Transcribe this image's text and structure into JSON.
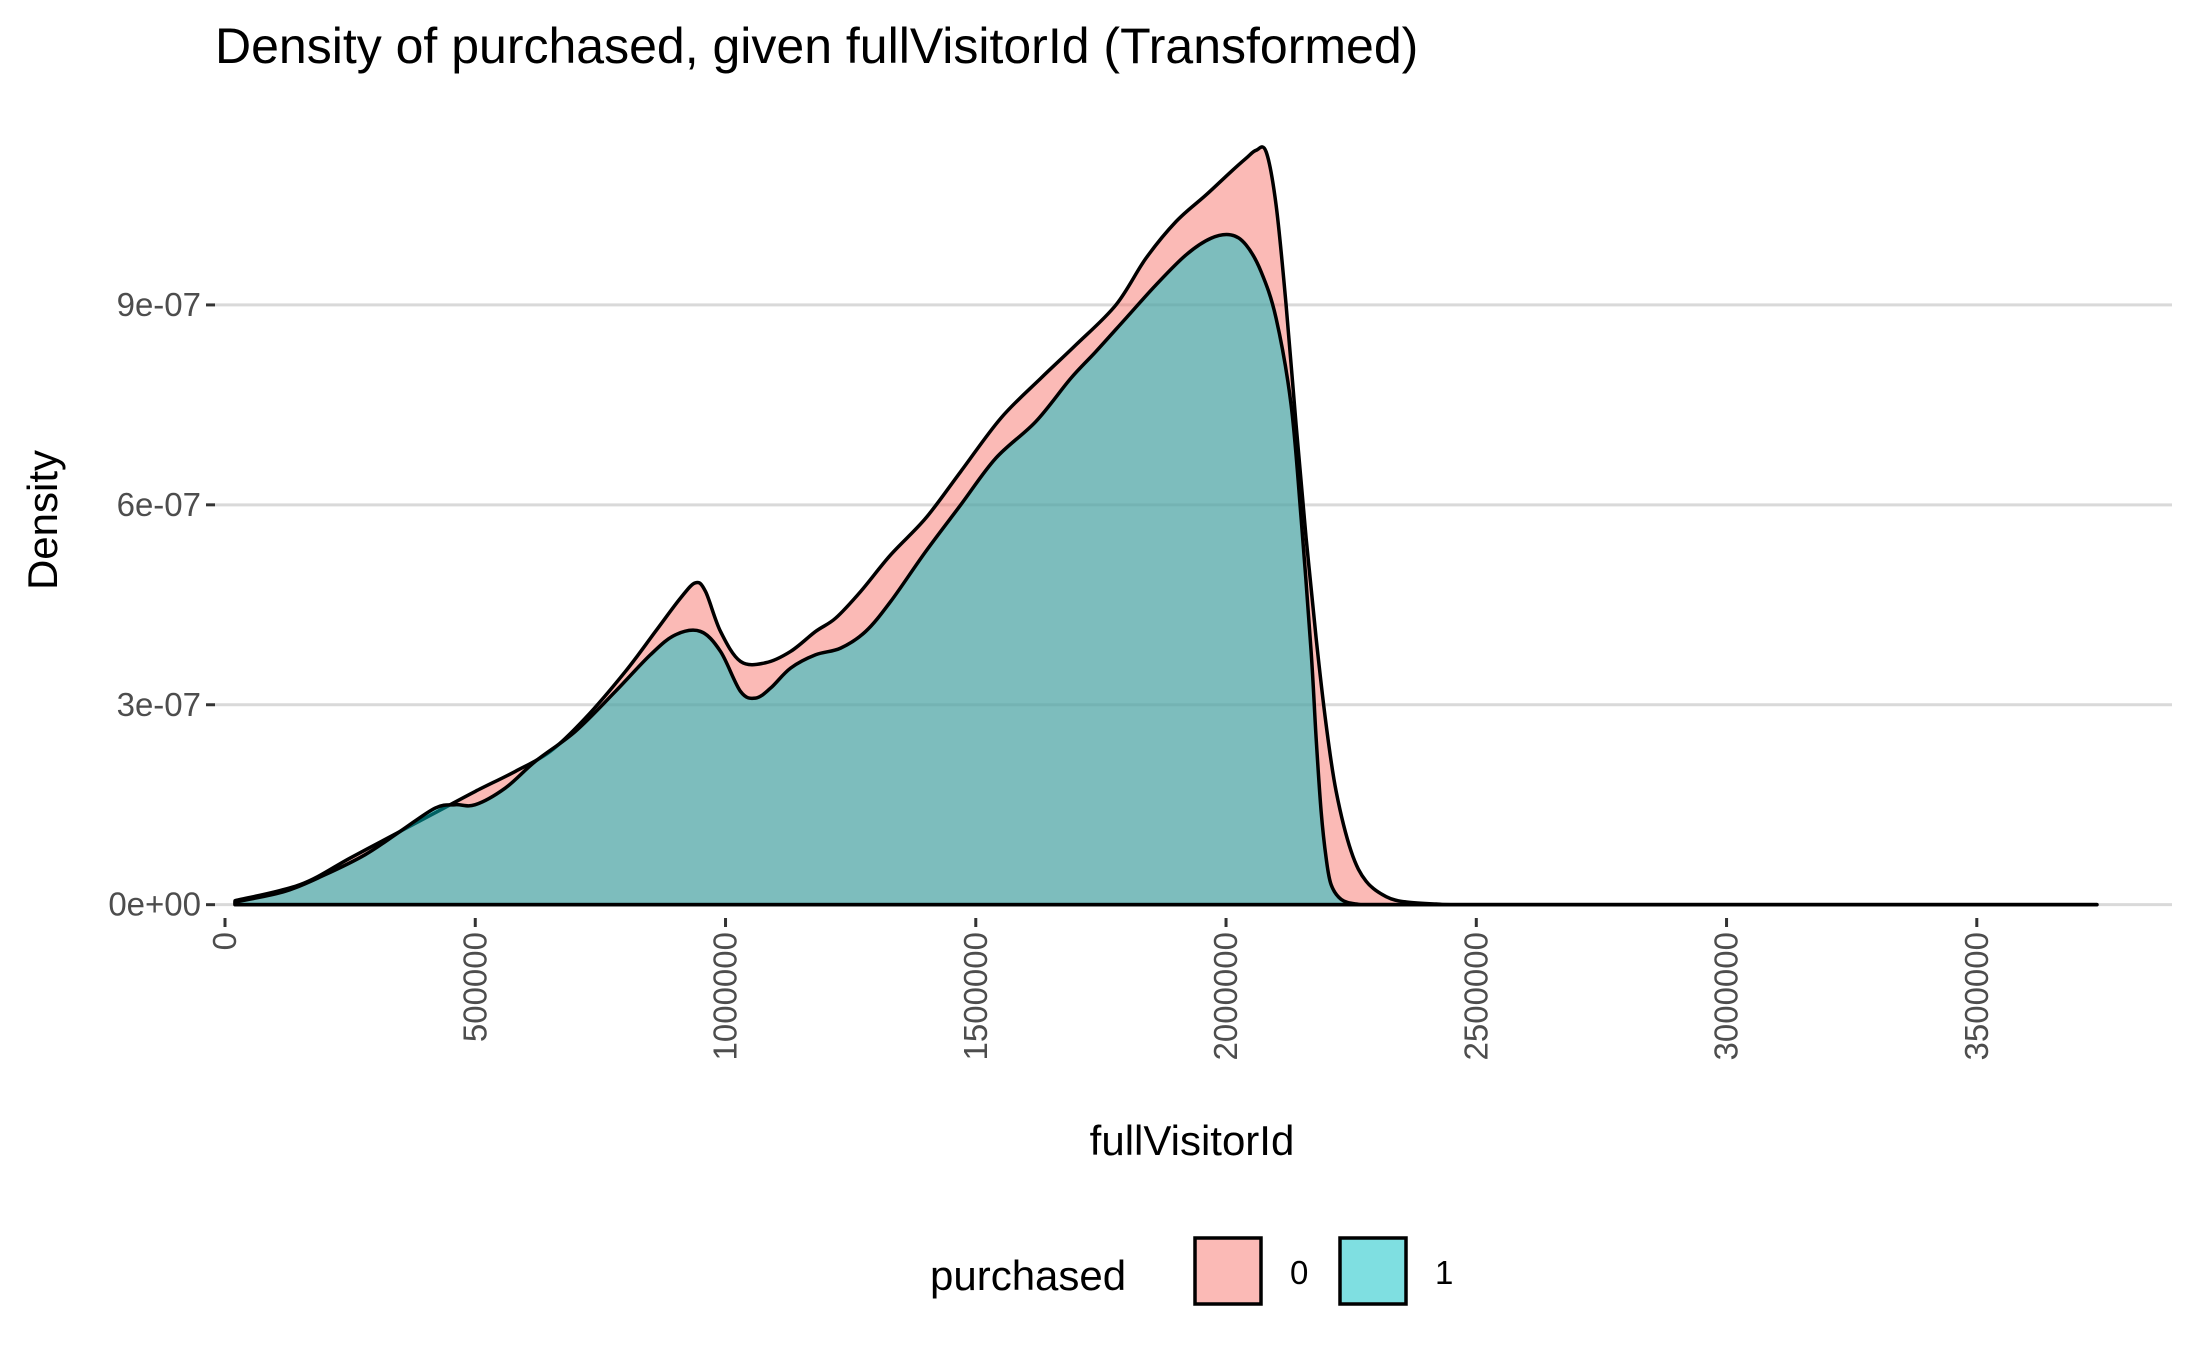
{
  "chart_data": {
    "type": "area",
    "title": "Density of purchased, given fullVisitorId (Transformed)",
    "xlabel": "fullVisitorId",
    "ylabel": "Density",
    "xlim": [
      -20000,
      3890000
    ],
    "ylim": [
      -2e-08,
      1.17e-06
    ],
    "x_ticks": [
      0,
      500000,
      1000000,
      1500000,
      2000000,
      2500000,
      3000000,
      3500000
    ],
    "x_tick_labels": [
      "0",
      "500000",
      "1000000",
      "1500000",
      "2000000",
      "2500000",
      "3000000",
      "3500000"
    ],
    "y_ticks": [
      0,
      3e-07,
      6e-07,
      9e-07
    ],
    "y_tick_labels": [
      "0e+00",
      "3e-07",
      "6e-07",
      "9e-07"
    ],
    "grid": "horizontal major",
    "legend": {
      "title": "purchased",
      "position": "bottom"
    },
    "fill_opacity": 0.5,
    "series": [
      {
        "name": "0",
        "color": "#F8766D",
        "x": [
          20000,
          150000,
          250000,
          350000,
          430000,
          500000,
          580000,
          650000,
          720000,
          800000,
          860000,
          910000,
          940000,
          960000,
          990000,
          1030000,
          1080000,
          1130000,
          1180000,
          1220000,
          1270000,
          1330000,
          1400000,
          1470000,
          1550000,
          1630000,
          1700000,
          1780000,
          1840000,
          1900000,
          1960000,
          2010000,
          2040000,
          2060000,
          2080000,
          2100000,
          2120000,
          2140000,
          2160000,
          2180000,
          2200000,
          2220000,
          2250000,
          2280000,
          2320000,
          2360000,
          2420000,
          2500000,
          3000000,
          3500000,
          3740000
        ],
        "values": [
          6e-09,
          3e-08,
          7e-08,
          1.1e-07,
          1.42e-07,
          1.7e-07,
          2e-07,
          2.3e-07,
          2.8e-07,
          3.5e-07,
          4.1e-07,
          4.6e-07,
          4.83e-07,
          4.7e-07,
          4.1e-07,
          3.65e-07,
          3.63e-07,
          3.8e-07,
          4.1e-07,
          4.3e-07,
          4.7e-07,
          5.25e-07,
          5.8e-07,
          6.5e-07,
          7.3e-07,
          7.9e-07,
          8.4e-07,
          9e-07,
          9.7e-07,
          1.025e-06,
          1.065e-06,
          1.1e-06,
          1.12e-06,
          1.132e-06,
          1.13e-06,
          1.05e-06,
          9e-07,
          7.2e-07,
          5.5e-07,
          4e-07,
          2.7e-07,
          1.7e-07,
          8e-08,
          3.5e-08,
          1.2e-08,
          4e-09,
          1e-09,
          0.0,
          0.0,
          0.0,
          0.0
        ]
      },
      {
        "name": "1",
        "color": "#00BFC4",
        "x": [
          20000,
          120000,
          200000,
          280000,
          350000,
          420000,
          460000,
          500000,
          560000,
          620000,
          700000,
          780000,
          850000,
          900000,
          950000,
          990000,
          1030000,
          1060000,
          1090000,
          1130000,
          1180000,
          1230000,
          1280000,
          1330000,
          1400000,
          1470000,
          1540000,
          1620000,
          1690000,
          1740000,
          1800000,
          1860000,
          1920000,
          1970000,
          2010000,
          2040000,
          2070000,
          2100000,
          2130000,
          2150000,
          2170000,
          2180000,
          2190000,
          2200000,
          2210000,
          2230000,
          2260000,
          2300000,
          2500000,
          3000000,
          3500000,
          3740000
        ],
        "values": [
          4e-09,
          2e-08,
          4.5e-08,
          7.5e-08,
          1.1e-07,
          1.45e-07,
          1.5e-07,
          1.5e-07,
          1.75e-07,
          2.15e-07,
          2.6e-07,
          3.2e-07,
          3.75e-07,
          4.05e-07,
          4.1e-07,
          3.8e-07,
          3.2e-07,
          3.1e-07,
          3.25e-07,
          3.55e-07,
          3.75e-07,
          3.85e-07,
          4.1e-07,
          4.55e-07,
          5.3e-07,
          6e-07,
          6.7e-07,
          7.25e-07,
          7.9e-07,
          8.3e-07,
          8.8e-07,
          9.3e-07,
          9.75e-07,
          1e-06,
          1.005e-06,
          9.9e-07,
          9.5e-07,
          8.8e-07,
          7.5e-07,
          5.8e-07,
          3.8e-07,
          2.5e-07,
          1.4e-07,
          7e-08,
          3e-08,
          8e-09,
          1e-09,
          0.0,
          0.0,
          0.0,
          0.0,
          0.0
        ]
      }
    ]
  }
}
